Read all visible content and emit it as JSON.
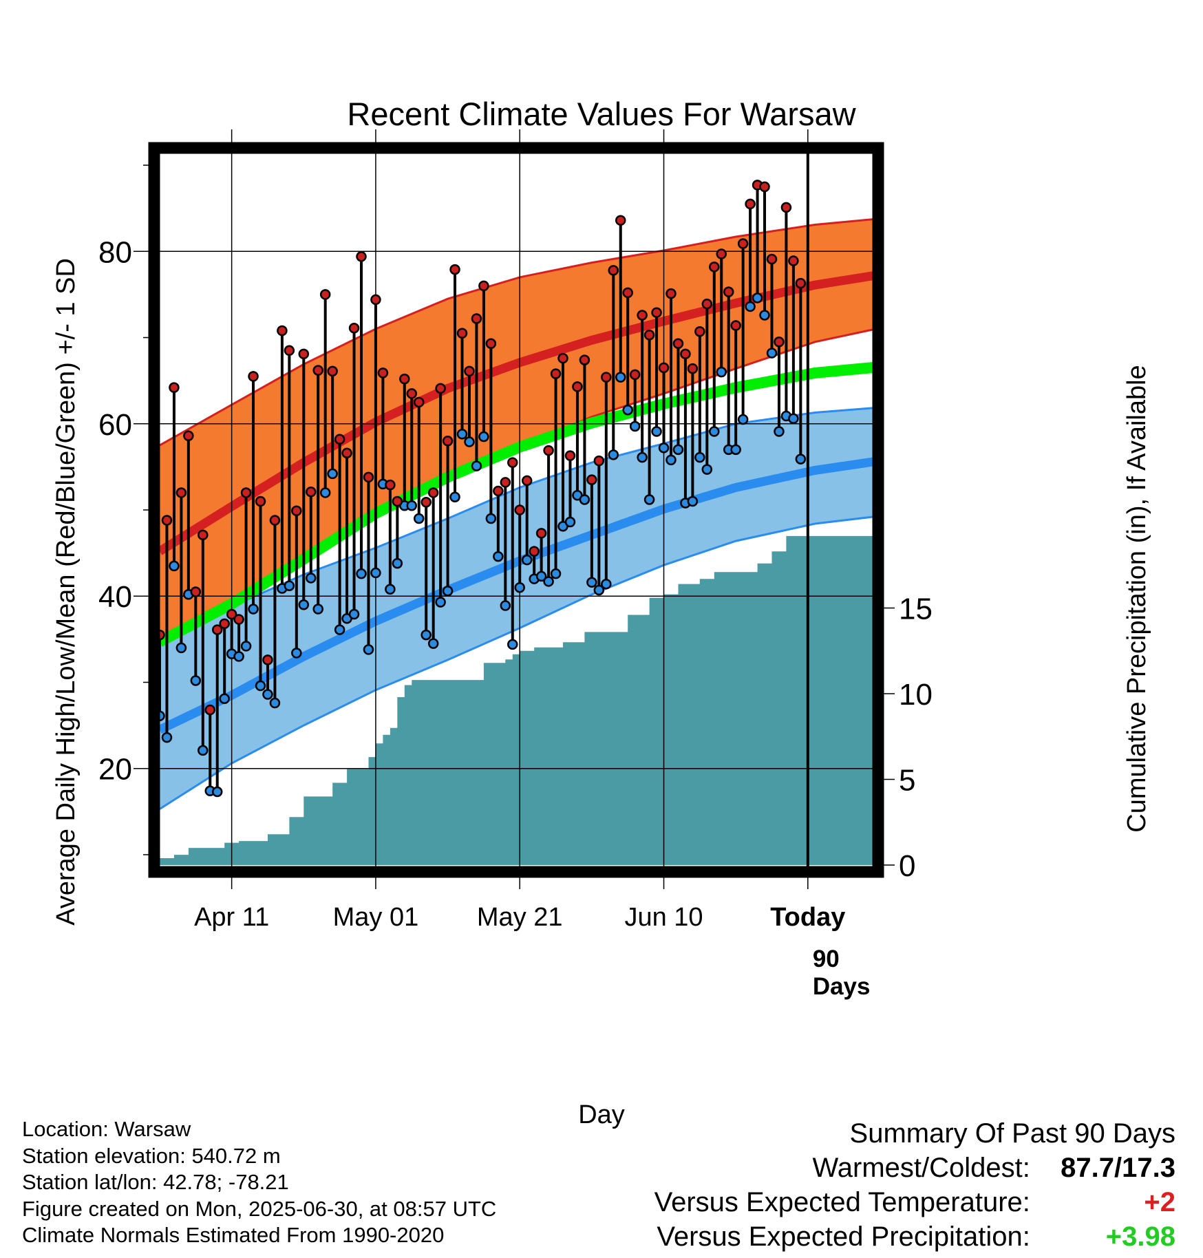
{
  "chart_data": {
    "type": "line",
    "title": "Recent Climate Values For Warsaw",
    "xlabel": "Day",
    "ylabel": "Average Daily High/Low/Mean (Red/Blue/Green) +/- 1 SD",
    "y2label": "Cumulative Precipitation (in), If Available",
    "ylim": [
      8,
      92
    ],
    "y2lim": [
      0,
      30
    ],
    "y_ticks": [
      "20",
      "40",
      "60",
      "80"
    ],
    "y2_ticks": [
      "0",
      "5",
      "10",
      "15"
    ],
    "x_tick_labels": [
      "Apr 11",
      "May 01",
      "May 21",
      "Jun 10",
      "Today"
    ],
    "x_start": "2025-04-01",
    "today": "2025-06-30",
    "today_marker_label": [
      "90",
      "Days"
    ],
    "colors": {
      "high_band": "#F47A30",
      "high_mean": "#D42020",
      "low_band": "#87C1E8",
      "low_mean": "#2A8CEE",
      "mean": "#00EE00",
      "precip": "#4A9BA3",
      "high_marker": "#C92020",
      "low_marker": "#2C8ADF"
    },
    "normals": {
      "dates": [
        "2025-04-01",
        "2025-04-11",
        "2025-04-21",
        "2025-05-01",
        "2025-05-11",
        "2025-05-21",
        "2025-05-31",
        "2025-06-10",
        "2025-06-20",
        "2025-07-01",
        "2025-07-10"
      ],
      "high_mean": [
        45.2,
        50.4,
        55.5,
        60.2,
        64.1,
        67.1,
        69.7,
        71.9,
        74.0,
        76.1,
        77.3
      ],
      "high_upper": [
        57.5,
        62.2,
        66.9,
        71.0,
        74.5,
        77.0,
        78.7,
        80.1,
        81.7,
        83.1,
        83.8
      ],
      "high_lower": [
        34.5,
        38.8,
        44.6,
        49.6,
        53.8,
        57.4,
        60.8,
        63.5,
        66.4,
        69.5,
        71.1
      ],
      "mean": [
        34.7,
        39.1,
        44.3,
        49.6,
        53.8,
        57.3,
        60.1,
        62.3,
        64.2,
        65.9,
        66.6
      ],
      "low_mean": [
        24.5,
        28.5,
        33.0,
        37.1,
        40.7,
        44.1,
        47.1,
        50.1,
        52.6,
        54.6,
        55.7
      ],
      "low_upper": [
        34.5,
        38.8,
        42.5,
        45.6,
        49.0,
        52.6,
        55.5,
        57.7,
        60.0,
        61.3,
        61.9
      ],
      "low_lower": [
        15.3,
        20.6,
        25.0,
        29.1,
        32.6,
        36.3,
        40.2,
        43.6,
        46.4,
        48.4,
        49.3
      ]
    },
    "series": [
      {
        "name": "High",
        "x": [
          "2025-04-01",
          "2025-04-02",
          "2025-04-03",
          "2025-04-04",
          "2025-04-05",
          "2025-04-06",
          "2025-04-07",
          "2025-04-08",
          "2025-04-09",
          "2025-04-10",
          "2025-04-11",
          "2025-04-12",
          "2025-04-13",
          "2025-04-14",
          "2025-04-15",
          "2025-04-16",
          "2025-04-17",
          "2025-04-18",
          "2025-04-19",
          "2025-04-20",
          "2025-04-21",
          "2025-04-22",
          "2025-04-23",
          "2025-04-24",
          "2025-04-25",
          "2025-04-26",
          "2025-04-27",
          "2025-04-28",
          "2025-04-29",
          "2025-04-30",
          "2025-05-01",
          "2025-05-02",
          "2025-05-03",
          "2025-05-04",
          "2025-05-05",
          "2025-05-06",
          "2025-05-07",
          "2025-05-08",
          "2025-05-09",
          "2025-05-10",
          "2025-05-11",
          "2025-05-12",
          "2025-05-13",
          "2025-05-14",
          "2025-05-15",
          "2025-05-16",
          "2025-05-17",
          "2025-05-18",
          "2025-05-19",
          "2025-05-20",
          "2025-05-21",
          "2025-05-22",
          "2025-05-23",
          "2025-05-24",
          "2025-05-25",
          "2025-05-26",
          "2025-05-27",
          "2025-05-28",
          "2025-05-29",
          "2025-05-30",
          "2025-05-31",
          "2025-06-01",
          "2025-06-02",
          "2025-06-03",
          "2025-06-04",
          "2025-06-05",
          "2025-06-06",
          "2025-06-07",
          "2025-06-08",
          "2025-06-09",
          "2025-06-10",
          "2025-06-11",
          "2025-06-12",
          "2025-06-13",
          "2025-06-14",
          "2025-06-15",
          "2025-06-16",
          "2025-06-17",
          "2025-06-18",
          "2025-06-19",
          "2025-06-20",
          "2025-06-21",
          "2025-06-22",
          "2025-06-23",
          "2025-06-24",
          "2025-06-25",
          "2025-06-26",
          "2025-06-27",
          "2025-06-28",
          "2025-06-29"
        ],
        "values": [
          35.5,
          48.8,
          64.2,
          52.0,
          58.6,
          40.5,
          47.1,
          26.8,
          36.1,
          36.8,
          37.9,
          37.3,
          52.0,
          65.5,
          51.0,
          32.6,
          48.8,
          70.8,
          68.5,
          49.9,
          68.1,
          52.1,
          66.2,
          75.0,
          66.1,
          58.2,
          56.6,
          71.1,
          79.4,
          53.8,
          74.4,
          65.9,
          52.9,
          51.0,
          65.2,
          63.5,
          62.5,
          50.9,
          52.0,
          64.1,
          58.0,
          77.9,
          70.5,
          66.1,
          72.2,
          76.0,
          69.3,
          52.2,
          53.2,
          55.5,
          50.0,
          53.4,
          45.2,
          47.3,
          56.9,
          65.8,
          67.6,
          56.3,
          64.3,
          67.4,
          53.5,
          55.7,
          65.4,
          77.8,
          83.6,
          75.2,
          65.7,
          72.6,
          70.3,
          72.9,
          66.5,
          75.1,
          69.3,
          68.1,
          66.4,
          70.7,
          73.9,
          78.2,
          79.7,
          75.3,
          71.4,
          80.9,
          85.5,
          87.7,
          87.5,
          79.1,
          69.5,
          85.1,
          78.9,
          76.3
        ]
      },
      {
        "name": "Low",
        "x": [
          "2025-04-01",
          "2025-04-02",
          "2025-04-03",
          "2025-04-04",
          "2025-04-05",
          "2025-04-06",
          "2025-04-07",
          "2025-04-08",
          "2025-04-09",
          "2025-04-10",
          "2025-04-11",
          "2025-04-12",
          "2025-04-13",
          "2025-04-14",
          "2025-04-15",
          "2025-04-16",
          "2025-04-17",
          "2025-04-18",
          "2025-04-19",
          "2025-04-20",
          "2025-04-21",
          "2025-04-22",
          "2025-04-23",
          "2025-04-24",
          "2025-04-25",
          "2025-04-26",
          "2025-04-27",
          "2025-04-28",
          "2025-04-29",
          "2025-04-30",
          "2025-05-01",
          "2025-05-02",
          "2025-05-03",
          "2025-05-04",
          "2025-05-05",
          "2025-05-06",
          "2025-05-07",
          "2025-05-08",
          "2025-05-09",
          "2025-05-10",
          "2025-05-11",
          "2025-05-12",
          "2025-05-13",
          "2025-05-14",
          "2025-05-15",
          "2025-05-16",
          "2025-05-17",
          "2025-05-18",
          "2025-05-19",
          "2025-05-20",
          "2025-05-21",
          "2025-05-22",
          "2025-05-23",
          "2025-05-24",
          "2025-05-25",
          "2025-05-26",
          "2025-05-27",
          "2025-05-28",
          "2025-05-29",
          "2025-05-30",
          "2025-05-31",
          "2025-06-01",
          "2025-06-02",
          "2025-06-03",
          "2025-06-04",
          "2025-06-05",
          "2025-06-06",
          "2025-06-07",
          "2025-06-08",
          "2025-06-09",
          "2025-06-10",
          "2025-06-11",
          "2025-06-12",
          "2025-06-13",
          "2025-06-14",
          "2025-06-15",
          "2025-06-16",
          "2025-06-17",
          "2025-06-18",
          "2025-06-19",
          "2025-06-20",
          "2025-06-21",
          "2025-06-22",
          "2025-06-23",
          "2025-06-24",
          "2025-06-25",
          "2025-06-26",
          "2025-06-27",
          "2025-06-28",
          "2025-06-29"
        ],
        "values": [
          26.1,
          23.6,
          43.5,
          34.0,
          40.2,
          30.2,
          22.1,
          17.4,
          17.3,
          28.1,
          33.3,
          33.0,
          34.2,
          38.5,
          29.6,
          28.6,
          27.6,
          40.9,
          41.2,
          33.4,
          39.0,
          42.1,
          38.5,
          52.0,
          54.2,
          36.1,
          37.4,
          37.9,
          42.6,
          33.8,
          42.7,
          53.0,
          40.8,
          43.8,
          50.5,
          50.5,
          49.0,
          35.5,
          34.5,
          39.3,
          40.6,
          51.5,
          58.8,
          57.9,
          55.1,
          58.5,
          49.0,
          44.6,
          38.9,
          34.4,
          41.0,
          44.2,
          42.0,
          42.3,
          41.7,
          42.6,
          48.1,
          48.6,
          51.7,
          51.2,
          41.6,
          40.7,
          41.4,
          56.4,
          65.4,
          61.6,
          59.7,
          56.1,
          51.2,
          59.1,
          57.2,
          55.8,
          57.0,
          50.8,
          51.0,
          56.1,
          54.7,
          59.1,
          66.0,
          57.0,
          57.0,
          60.5,
          73.6,
          74.6,
          72.6,
          68.2,
          59.1,
          60.9,
          60.6,
          55.9
        ]
      }
    ],
    "precip": {
      "x": [
        "2025-04-01",
        "2025-04-03",
        "2025-04-05",
        "2025-04-10",
        "2025-04-12",
        "2025-04-16",
        "2025-04-19",
        "2025-04-21",
        "2025-04-25",
        "2025-04-27",
        "2025-04-30",
        "2025-05-01",
        "2025-05-02",
        "2025-05-03",
        "2025-05-04",
        "2025-05-05",
        "2025-05-06",
        "2025-05-14",
        "2025-05-16",
        "2025-05-19",
        "2025-05-20",
        "2025-05-21",
        "2025-05-23",
        "2025-05-27",
        "2025-05-30",
        "2025-06-03",
        "2025-06-05",
        "2025-06-06",
        "2025-06-08",
        "2025-06-09",
        "2025-06-10",
        "2025-06-12",
        "2025-06-15",
        "2025-06-17",
        "2025-06-23",
        "2025-06-25",
        "2025-06-27",
        "2025-07-09"
      ],
      "values": [
        0.4,
        0.6,
        1.0,
        1.3,
        1.4,
        1.8,
        2.8,
        4.0,
        4.8,
        5.6,
        6.3,
        7.1,
        7.6,
        8.0,
        9.8,
        10.5,
        10.8,
        10.8,
        11.8,
        12.0,
        12.3,
        12.5,
        12.7,
        13.0,
        13.6,
        13.6,
        14.6,
        14.6,
        15.6,
        15.6,
        15.8,
        16.4,
        16.7,
        17.1,
        17.6,
        18.3,
        19.2,
        19.2
      ]
    }
  },
  "info": {
    "location": "Location: Warsaw",
    "elevation": "Station elevation: 540.72 m",
    "latlon": "Station lat/lon: 42.78; -78.21",
    "created": "Figure created on Mon, 2025-06-30, at 08:57 UTC",
    "normals": "Climate Normals Estimated From 1990-2020"
  },
  "summary": {
    "title": "Summary Of Past 90 Days",
    "warmest_label": "Warmest/Coldest:",
    "warmest_value": "87.7/17.3",
    "temp_label": "Versus Expected Temperature:",
    "temp_value": "+2",
    "temp_color": "#DD1F1F",
    "precip_label": "Versus Expected Precipitation:",
    "precip_value": "+3.98",
    "precip_color": "#22CC22"
  }
}
